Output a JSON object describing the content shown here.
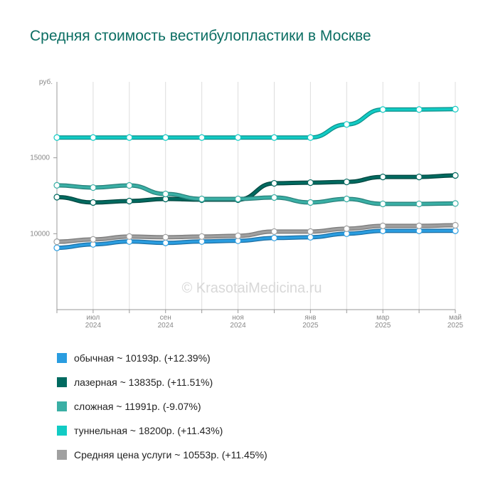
{
  "chart_data": {
    "type": "line",
    "title": "Средняя стоимость вестибулопластики в Москве",
    "y_label": "руб.",
    "watermark": "© KrasotaiMedicina.ru",
    "categories": [
      null,
      "июл 2024",
      null,
      "сен 2024",
      null,
      "ноя 2024",
      null,
      "янв 2025",
      null,
      "мар 2025",
      null,
      "май 2025"
    ],
    "ylim": [
      5000,
      20000
    ],
    "yticks": [
      10000,
      15000
    ],
    "grid": true,
    "series": [
      {
        "name": "обычная ~ 10193р. (+12.39%)",
        "color": "#2a9de0",
        "edge": "#1d6fa3",
        "values": [
          9069,
          9299,
          9486,
          9393,
          9486,
          9533,
          9720,
          9766,
          10000,
          10187,
          10187,
          10193
        ]
      },
      {
        "name": "лазерная ~ 13835р. (+11.51%)",
        "color": "#006a60",
        "edge": "#00463f",
        "values": [
          12407,
          12056,
          12150,
          12290,
          12243,
          12243,
          13318,
          13364,
          13411,
          13738,
          13738,
          13835
        ]
      },
      {
        "name": "сложная ~ 11991р. (-9.07%)",
        "color": "#3aafa5",
        "edge": "#27807a",
        "values": [
          13187,
          13037,
          13178,
          12617,
          12290,
          12290,
          12383,
          12056,
          12290,
          11963,
          11963,
          11991
        ]
      },
      {
        "name": "туннельная ~ 18200р. (+11.43%)",
        "color": "#12cbc4",
        "edge": "#0c8f8a",
        "values": [
          16333,
          16333,
          16333,
          16333,
          16333,
          16333,
          16333,
          16333,
          17196,
          18178,
          18178,
          18200
        ]
      },
      {
        "name": "Средняя цена услуги ~ 10553р. (+11.45%)",
        "color": "#a0a0a0",
        "edge": "#7a7a7a",
        "values": [
          9469,
          9626,
          9813,
          9766,
          9813,
          9860,
          10140,
          10140,
          10327,
          10514,
          10514,
          10553
        ]
      }
    ]
  }
}
